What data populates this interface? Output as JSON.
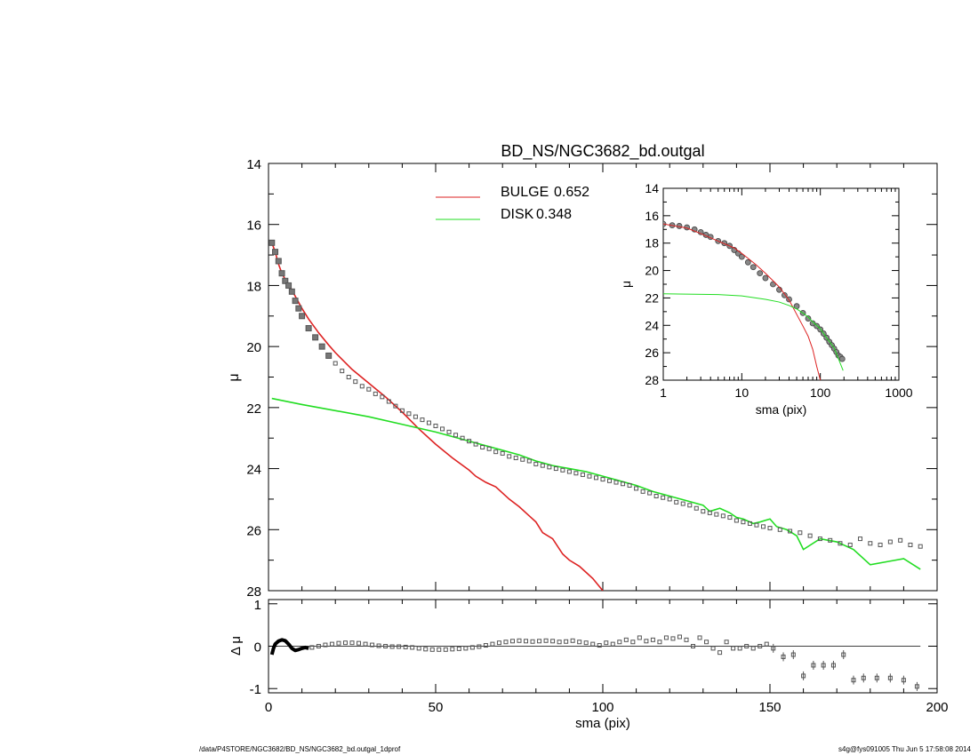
{
  "footer": {
    "left": "/data/P4STORE/NGC3682/BD_NS/NGC3682_bd.outgal_1dprof",
    "right": "s4g@fys091005  Thu Jun  5 17:58:08 2014"
  },
  "colors": {
    "bulge": "#dd2222",
    "disk": "#22dd22",
    "data": "#555555",
    "axes": "#000000"
  },
  "chart_data": [
    {
      "id": "main",
      "type": "line",
      "title": "BD_NS/NGC3682_bd.outgal",
      "xlabel": "",
      "ylabel": "μ",
      "xlim": [
        0,
        200
      ],
      "ylim": [
        28,
        14
      ],
      "y_inverted": true,
      "xticks": [
        0,
        50,
        100,
        150,
        200
      ],
      "yticks": [
        14,
        16,
        18,
        20,
        22,
        24,
        26,
        28
      ],
      "x_minor_step": 10,
      "y_minor_step": 1,
      "legend": [
        {
          "label": "BULGE",
          "value": "0.652",
          "color": "#dd2222"
        },
        {
          "label": "DISK",
          "value": "0.348",
          "color": "#22dd22"
        }
      ],
      "legend_position": "top-center",
      "series": [
        {
          "name": "BULGE",
          "color": "#dd2222",
          "x": [
            1,
            2,
            3,
            4,
            5,
            6,
            8,
            10,
            12,
            15,
            18,
            20,
            25,
            30,
            35,
            40,
            45,
            50,
            55,
            60,
            62,
            65,
            68,
            70,
            72,
            75,
            78,
            80,
            82,
            85,
            88,
            90,
            93,
            95,
            97,
            100
          ],
          "y": [
            16.6,
            16.9,
            17.3,
            17.6,
            17.8,
            17.95,
            18.35,
            18.75,
            19.1,
            19.55,
            19.95,
            20.2,
            20.75,
            21.2,
            21.65,
            22.15,
            22.7,
            23.2,
            23.65,
            24.05,
            24.25,
            24.45,
            24.6,
            24.8,
            25.0,
            25.25,
            25.55,
            25.75,
            26.1,
            26.3,
            26.8,
            27.0,
            27.2,
            27.4,
            27.6,
            28.0
          ]
        },
        {
          "name": "DISK",
          "color": "#22dd22",
          "x": [
            1,
            10,
            20,
            30,
            40,
            50,
            60,
            70,
            75,
            80,
            85,
            90,
            95,
            100,
            105,
            110,
            115,
            120,
            125,
            130,
            132,
            135,
            138,
            140,
            142,
            145,
            147,
            150,
            152,
            155,
            158,
            160,
            165,
            170,
            175,
            180,
            185,
            190,
            195
          ],
          "y": [
            21.7,
            21.9,
            22.1,
            22.3,
            22.55,
            22.8,
            23.1,
            23.4,
            23.55,
            23.75,
            23.9,
            24.0,
            24.1,
            24.25,
            24.4,
            24.55,
            24.75,
            24.9,
            25.05,
            25.2,
            25.4,
            25.3,
            25.45,
            25.6,
            25.65,
            25.8,
            25.75,
            25.65,
            25.9,
            26.0,
            26.2,
            26.65,
            26.3,
            26.4,
            26.65,
            27.15,
            27.05,
            26.95,
            27.3
          ]
        },
        {
          "name": "",
          "type": "scatter",
          "color": "#555555",
          "x": [
            1,
            2,
            3,
            4,
            5,
            6,
            7,
            8,
            9,
            10,
            12,
            14,
            16,
            18,
            20,
            22,
            24,
            26,
            28,
            30,
            32,
            34,
            36,
            38,
            40,
            42,
            44,
            46,
            48,
            50,
            52,
            54,
            56,
            58,
            60,
            62,
            64,
            66,
            68,
            70,
            72,
            74,
            76,
            78,
            80,
            82,
            84,
            86,
            88,
            90,
            92,
            94,
            96,
            98,
            100,
            102,
            104,
            106,
            108,
            110,
            112,
            114,
            116,
            118,
            120,
            122,
            124,
            126,
            128,
            130,
            132,
            134,
            136,
            138,
            140,
            142,
            144,
            146,
            148,
            150,
            153,
            156,
            159,
            162,
            165,
            168,
            171,
            174,
            177,
            180,
            183,
            186,
            189,
            192,
            195
          ],
          "y": [
            16.6,
            16.9,
            17.2,
            17.6,
            17.85,
            18.0,
            18.2,
            18.5,
            18.75,
            19.0,
            19.4,
            19.7,
            20.0,
            20.3,
            20.55,
            20.8,
            21.0,
            21.15,
            21.3,
            21.4,
            21.55,
            21.65,
            21.8,
            21.95,
            22.1,
            22.2,
            22.3,
            22.4,
            22.5,
            22.6,
            22.7,
            22.8,
            22.9,
            23.0,
            23.1,
            23.2,
            23.3,
            23.35,
            23.45,
            23.5,
            23.6,
            23.65,
            23.7,
            23.75,
            23.85,
            23.9,
            23.95,
            24.0,
            24.05,
            24.1,
            24.15,
            24.2,
            24.25,
            24.3,
            24.35,
            24.4,
            24.45,
            24.5,
            24.55,
            24.65,
            24.75,
            24.8,
            24.9,
            24.95,
            25.0,
            25.1,
            25.15,
            25.2,
            25.3,
            25.4,
            25.45,
            25.5,
            25.55,
            25.6,
            25.7,
            25.75,
            25.8,
            25.85,
            25.9,
            25.95,
            26.0,
            26.05,
            26.1,
            26.2,
            26.3,
            26.35,
            26.45,
            26.5,
            26.3,
            26.45,
            26.5,
            26.4,
            26.35,
            26.5,
            26.55
          ]
        }
      ]
    },
    {
      "id": "inset",
      "type": "line",
      "xlabel": "sma (pix)",
      "ylabel": "μ",
      "xscale": "log",
      "xlim": [
        1,
        1000
      ],
      "ylim": [
        28,
        14
      ],
      "y_inverted": true,
      "xticks": [
        1,
        10,
        100,
        1000
      ],
      "yticks": [
        14,
        16,
        18,
        20,
        22,
        24,
        26,
        28
      ],
      "series": [
        {
          "name": "",
          "type": "scatter",
          "color": "#555555",
          "x": [
            1,
            1.3,
            1.6,
            2,
            2.5,
            3,
            3.5,
            4,
            5,
            6,
            7,
            8,
            9,
            10,
            12,
            14,
            17,
            20,
            25,
            30,
            35,
            40,
            50,
            60,
            70,
            80,
            90,
            100,
            110,
            120,
            130,
            140,
            150,
            160,
            170,
            180,
            190
          ],
          "y": [
            16.6,
            16.7,
            16.75,
            16.85,
            17.0,
            17.2,
            17.4,
            17.55,
            17.85,
            18.0,
            18.2,
            18.5,
            18.75,
            19.0,
            19.4,
            19.75,
            20.2,
            20.55,
            21.0,
            21.4,
            21.8,
            22.1,
            22.6,
            23.1,
            23.5,
            23.85,
            24.05,
            24.3,
            24.6,
            24.9,
            25.2,
            25.45,
            25.7,
            25.95,
            26.2,
            26.3,
            26.45
          ]
        },
        {
          "name": "",
          "color": "#dd2222",
          "x": [
            1,
            2,
            3,
            5,
            8,
            10,
            15,
            20,
            30,
            40,
            50,
            60,
            70,
            80,
            90,
            100
          ],
          "y": [
            16.6,
            16.9,
            17.3,
            17.85,
            18.35,
            18.75,
            19.55,
            20.2,
            21.2,
            22.15,
            23.2,
            24.05,
            24.8,
            25.75,
            27.0,
            28.0
          ]
        },
        {
          "name": "",
          "color": "#22dd22",
          "x": [
            1,
            5,
            10,
            20,
            30,
            40,
            50,
            60,
            70,
            80,
            100,
            120,
            150,
            195
          ],
          "y": [
            21.7,
            21.75,
            21.85,
            22.1,
            22.3,
            22.55,
            22.8,
            23.1,
            23.4,
            23.75,
            24.25,
            24.9,
            25.65,
            27.3
          ]
        }
      ]
    },
    {
      "id": "residual",
      "type": "scatter",
      "xlabel": "sma (pix)",
      "ylabel": "Δ μ",
      "xlim": [
        0,
        200
      ],
      "ylim": [
        -1.1,
        1.1
      ],
      "xticks": [
        0,
        50,
        100,
        150,
        200
      ],
      "yticks": [
        1,
        0,
        -1
      ],
      "series": [
        {
          "name": "",
          "color": "#000000",
          "type": "thick-line",
          "x": [
            1,
            1.5,
            2,
            3,
            4,
            5,
            6,
            7,
            8,
            9,
            10,
            11,
            12
          ],
          "y": [
            -0.2,
            -0.05,
            0.05,
            0.12,
            0.15,
            0.13,
            0.05,
            -0.05,
            -0.1,
            -0.08,
            -0.05,
            -0.03,
            -0.05
          ]
        },
        {
          "name": "",
          "color": "#555555",
          "x": [
            13,
            15,
            17,
            19,
            21,
            23,
            25,
            27,
            29,
            31,
            33,
            35,
            37,
            39,
            41,
            43,
            45,
            47,
            49,
            51,
            53,
            55,
            57,
            59,
            61,
            63,
            65,
            67,
            69,
            71,
            73,
            75,
            77,
            79,
            81,
            83,
            85,
            87,
            89,
            91,
            93,
            95,
            97,
            99,
            101,
            103,
            105,
            107,
            109,
            111,
            113,
            115,
            117,
            119,
            121,
            123,
            125,
            127,
            129,
            131,
            133,
            135,
            137,
            139,
            141,
            143,
            145,
            147,
            149,
            151,
            154,
            157,
            160,
            163,
            166,
            169,
            172,
            175,
            178,
            182,
            186,
            190,
            194
          ],
          "y": [
            -0.03,
            0.0,
            0.03,
            0.05,
            0.07,
            0.08,
            0.08,
            0.07,
            0.05,
            0.03,
            0.01,
            0.0,
            -0.01,
            -0.01,
            -0.02,
            -0.03,
            -0.05,
            -0.07,
            -0.08,
            -0.08,
            -0.08,
            -0.07,
            -0.06,
            -0.05,
            -0.03,
            -0.01,
            0.02,
            0.05,
            0.08,
            0.1,
            0.12,
            0.13,
            0.12,
            0.11,
            0.12,
            0.13,
            0.12,
            0.1,
            0.11,
            0.13,
            0.1,
            0.08,
            0.05,
            0.02,
            0.08,
            0.05,
            0.1,
            0.15,
            0.1,
            0.2,
            0.12,
            0.15,
            0.1,
            0.2,
            0.18,
            0.22,
            0.15,
            0.0,
            0.2,
            0.1,
            -0.05,
            -0.15,
            0.1,
            -0.05,
            -0.05,
            0.0,
            -0.05,
            0.0,
            0.05,
            -0.05,
            -0.25,
            -0.2,
            -0.7,
            -0.45,
            -0.45,
            -0.45,
            -0.2,
            -0.8,
            -0.75,
            -0.75,
            -0.75,
            -0.8,
            -0.95
          ]
        }
      ]
    }
  ]
}
